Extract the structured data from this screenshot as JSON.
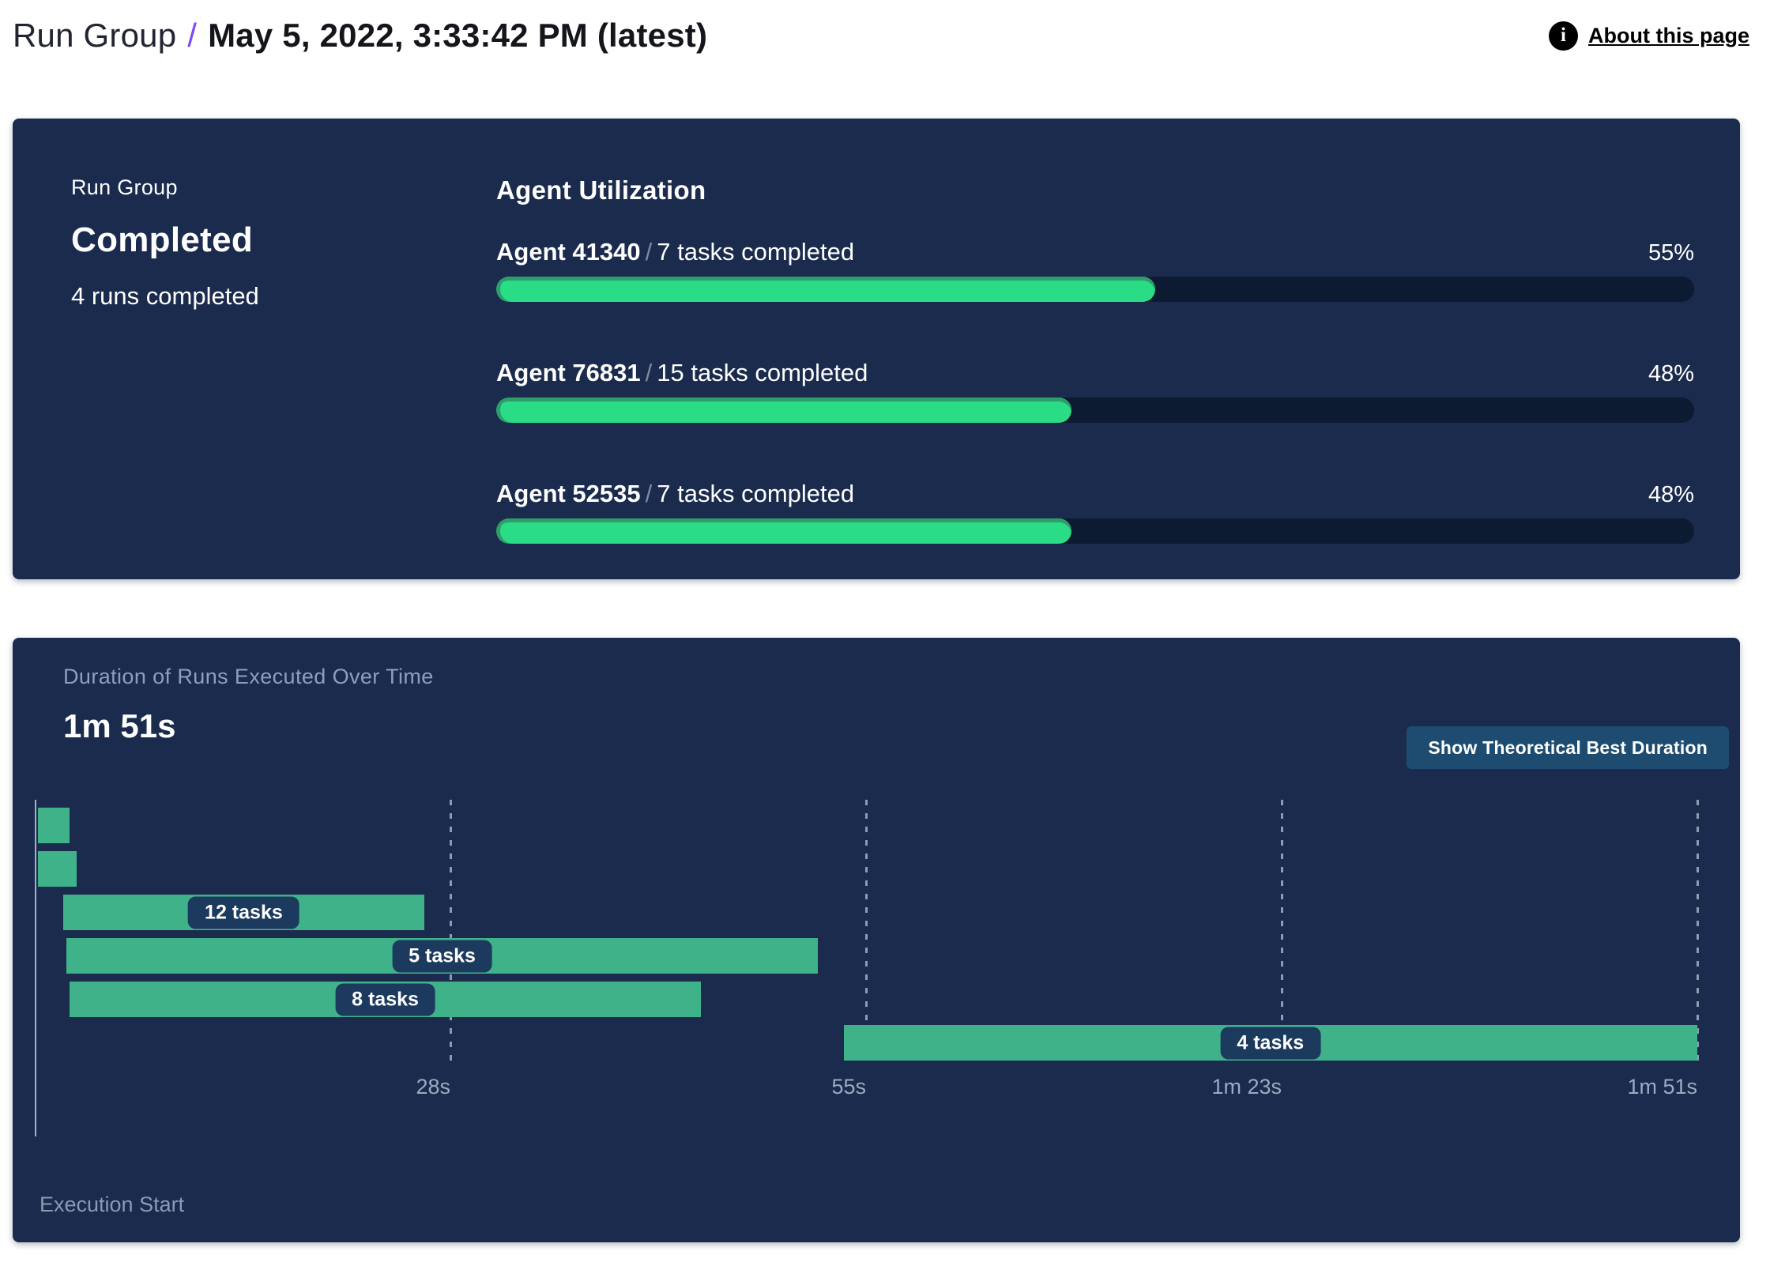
{
  "header": {
    "breadcrumb_root": "Run Group",
    "separator": "/",
    "title": "May 5, 2022, 3:33:42 PM (latest)",
    "about_link": "About this page",
    "info_icon_glyph": "i"
  },
  "summary": {
    "label": "Run Group",
    "status": "Completed",
    "detail": "4 runs completed"
  },
  "utilization": {
    "title": "Agent Utilization",
    "separator": "/",
    "agents": [
      {
        "name": "Agent 41340",
        "tasks": "7 tasks completed",
        "percent": 55,
        "percent_label": "55%"
      },
      {
        "name": "Agent 76831",
        "tasks": "15 tasks completed",
        "percent": 48,
        "percent_label": "48%"
      },
      {
        "name": "Agent 52535",
        "tasks": "7 tasks completed",
        "percent": 48,
        "percent_label": "48%"
      }
    ]
  },
  "duration_panel": {
    "title": "Duration of Runs Executed Over Time",
    "total_duration": "1m 51s",
    "button_label": "Show Theoretical Best Duration",
    "axis_label": "Execution Start"
  },
  "chart_data": {
    "type": "gantt",
    "title": "Duration of Runs Executed Over Time",
    "total_duration_label": "1m 51s",
    "total_duration_seconds": 111,
    "x_axis_label": "Execution Start",
    "grid": "dashed-vertical",
    "legend": "none",
    "x_ticks": [
      {
        "label": "28s",
        "seconds": 27.75
      },
      {
        "label": "55s",
        "seconds": 55.5
      },
      {
        "label": "1m 23s",
        "seconds": 83.25
      },
      {
        "label": "1m 51s",
        "seconds": 111
      }
    ],
    "runs": [
      {
        "start_seconds": 0.2,
        "end_seconds": 2.3,
        "label": ""
      },
      {
        "start_seconds": 0.2,
        "end_seconds": 2.8,
        "label": ""
      },
      {
        "start_seconds": 1.9,
        "end_seconds": 26.0,
        "label": "12 tasks"
      },
      {
        "start_seconds": 2.1,
        "end_seconds": 52.3,
        "label": "5 tasks"
      },
      {
        "start_seconds": 2.3,
        "end_seconds": 44.5,
        "label": "8 tasks"
      },
      {
        "start_seconds": 54.0,
        "end_seconds": 111.0,
        "label": "4 tasks"
      }
    ]
  },
  "colors": {
    "panel_bg": "#1A2B4D",
    "accent_purple": "#7B4CF2",
    "utilization_fill": "#2BDC86",
    "utilization_fill_rim": "#2E9D6B",
    "utilization_track": "#0C1B31",
    "gantt_bar": "#3FB28A",
    "gantt_label_bg": "#1C3A5E",
    "button_bg": "#1E4C70"
  }
}
